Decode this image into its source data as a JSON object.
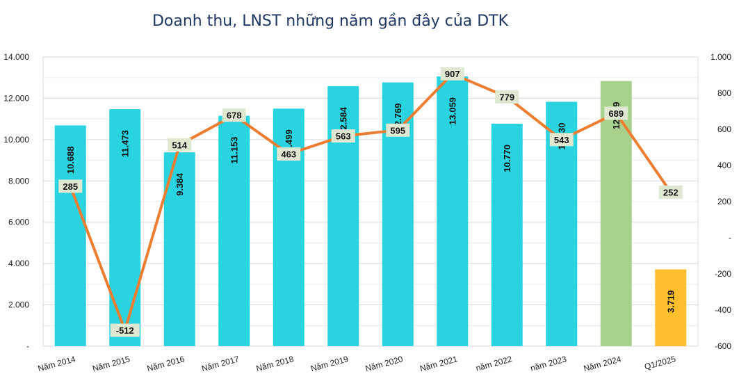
{
  "chart_data": {
    "type": "bar",
    "title": "Doanh thu, LNST những năm gần đây của DTK",
    "categories": [
      "Năm 2014",
      "Năm 2015",
      "Năm 2016",
      "Năm 2017",
      "Năm 2018",
      "Năm 2019",
      "Năm 2020",
      "Năm 2021",
      "năm 2022",
      "năm 2023",
      "Năm 2024",
      "Q1/2025"
    ],
    "series": [
      {
        "chart_type": "bar",
        "axis": "left",
        "values": [
          10688,
          11473,
          9384,
          11153,
          11499,
          12584,
          12769,
          13059,
          10770,
          11830,
          12839,
          3719
        ],
        "labels": [
          "10.688",
          "11.473",
          "9.384",
          "11.153",
          "11.499",
          "12.584",
          "12.769",
          "13.059",
          "10.770",
          "11.830",
          "12.839",
          "3.719"
        ],
        "colors": [
          "#29d3e0",
          "#29d3e0",
          "#29d3e0",
          "#29d3e0",
          "#29d3e0",
          "#29d3e0",
          "#29d3e0",
          "#29d3e0",
          "#29d3e0",
          "#29d3e0",
          "#a9d18e",
          "#fbbf2d"
        ]
      },
      {
        "chart_type": "line",
        "axis": "right",
        "color": "#ed7d31",
        "values": [
          285,
          -512,
          514,
          678,
          463,
          563,
          595,
          907,
          779,
          543,
          689,
          252
        ],
        "labels": [
          "285",
          "-512",
          "514",
          "678",
          "463",
          "563",
          "595",
          "907",
          "779",
          "543",
          "689",
          "252"
        ]
      }
    ],
    "y_left": {
      "range": [
        0,
        14000
      ],
      "ticks": [
        "-",
        "2.000",
        "4.000",
        "6.000",
        "8.000",
        "10.000",
        "12.000",
        "14.000"
      ]
    },
    "y_right": {
      "range": [
        -600,
        1000
      ],
      "ticks": [
        "-600",
        "-400",
        "-200",
        "-",
        "200",
        "400",
        "600",
        "800",
        "1.000"
      ]
    },
    "grid": true,
    "legend": "none",
    "label_bg": "#dfe9d2"
  }
}
